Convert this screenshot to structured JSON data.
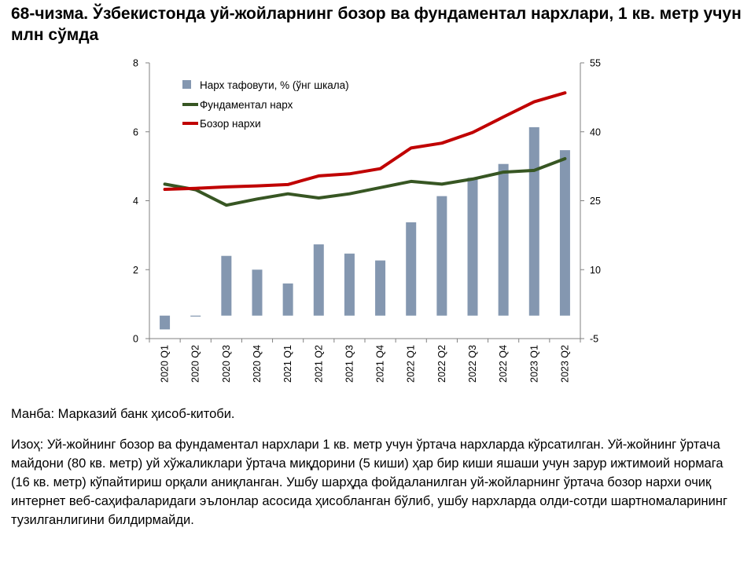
{
  "title": "68-чизма. Ўзбекистонда уй-жойларнинг бозор ва фундаментал нархлари, 1 кв. метр учун млн сўмда",
  "source": "Манба: Марказий банк ҳисоб-китоби.",
  "note": "Изоҳ: Уй-жойнинг бозор ва фундаментал нархлари 1 кв. метр учун ўртача нархларда кўрсатилган. Уй-жойнинг ўртача майдони (80 кв. метр) уй хўжаликлари ўртача миқдорини (5 киши) ҳар бир киши яшаши учун зарур ижтимоий нормага (16 кв. метр) кўпайтириш орқали аниқланган. Ушбу шарҳда фойдаланилган уй-жойларнинг ўртача бозор нархи очиқ интернет веб-саҳифаларидаги эълонлар асосида ҳисобланган бўлиб, ушбу нархларда олди-сотди шартномаларининг тузилганлигини билдирмайди.",
  "chart_data": {
    "type": "bar+line",
    "categories": [
      "2020 Q1",
      "2020 Q2",
      "2020 Q3",
      "2020 Q4",
      "2021 Q1",
      "2021 Q2",
      "2021 Q3",
      "2021 Q4",
      "2022 Q1",
      "2022 Q2",
      "2022 Q3",
      "2022 Q4",
      "2023 Q1",
      "2023 Q2"
    ],
    "left_axis": {
      "min": 0,
      "max": 8,
      "ticks": [
        0,
        2,
        4,
        6,
        8
      ]
    },
    "right_axis": {
      "min": -5,
      "max": 55,
      "ticks": [
        -5,
        10,
        25,
        40,
        55
      ]
    },
    "series": [
      {
        "name": "Нарх тафовути, % (ўнг шкала)",
        "type": "bar",
        "axis": "right",
        "color": "#8497B0",
        "values": [
          -3.0,
          0.0,
          13.0,
          10.0,
          7.0,
          15.5,
          13.5,
          12.0,
          20.3,
          26.0,
          30.0,
          33.0,
          41.0,
          36.0
        ]
      },
      {
        "name": "Фундаментал нарх",
        "type": "line",
        "axis": "left",
        "color": "#375623",
        "values": [
          4.48,
          4.32,
          3.87,
          4.05,
          4.2,
          4.08,
          4.2,
          4.38,
          4.56,
          4.48,
          4.63,
          4.83,
          4.88,
          5.22
        ]
      },
      {
        "name": "Бозор нархи",
        "type": "line",
        "axis": "left",
        "color": "#C00000",
        "values": [
          4.33,
          4.36,
          4.4,
          4.43,
          4.47,
          4.72,
          4.78,
          4.93,
          5.53,
          5.67,
          5.98,
          6.43,
          6.87,
          7.13
        ]
      }
    ]
  }
}
